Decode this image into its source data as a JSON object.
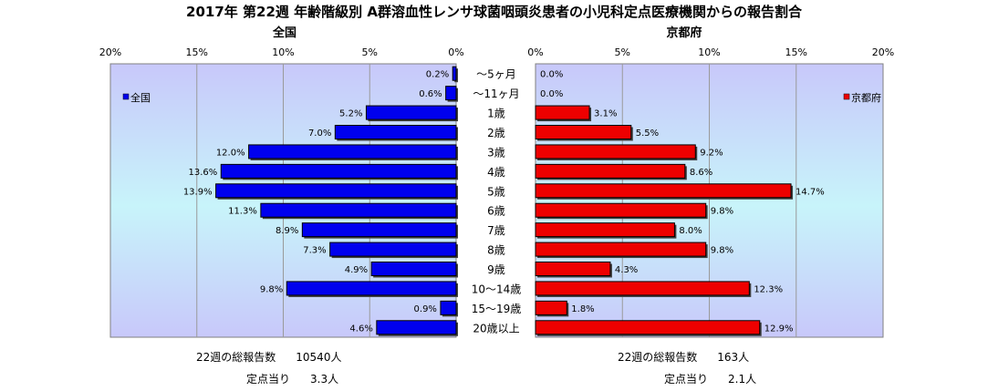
{
  "title": "2017年 第22週 年齢階級別 A群溶血性レンサ球菌咽頭炎患者の小児科定点医療機関からの報告割合",
  "colors": {
    "left_bar": "#0000ee",
    "right_bar": "#ee0000",
    "plot_bg": "#ccccff"
  },
  "chart_data": [
    {
      "type": "bar",
      "orientation": "horizontal",
      "direction": "right-to-left",
      "title": "全国",
      "categories": [
        "～5ヶ月",
        "～11ヶ月",
        "1歳",
        "2歳",
        "3歳",
        "4歳",
        "5歳",
        "6歳",
        "7歳",
        "8歳",
        "9歳",
        "10～14歳",
        "15～19歳",
        "20歳以上"
      ],
      "series": [
        {
          "name": "全国",
          "values": [
            0.2,
            0.6,
            5.2,
            7.0,
            12.0,
            13.6,
            13.9,
            11.3,
            8.9,
            7.3,
            4.9,
            9.8,
            0.9,
            4.6
          ]
        }
      ],
      "value_labels": [
        "0.2%",
        "0.6%",
        "5.2%",
        "7.0%",
        "12.0%",
        "13.6%",
        "13.9%",
        "11.3%",
        "8.9%",
        "7.3%",
        "4.9%",
        "9.8%",
        "0.9%",
        "4.6%"
      ],
      "xlim": [
        0,
        20
      ],
      "ticks": [
        "20%",
        "15%",
        "10%",
        "5%",
        "0%"
      ],
      "grid": true,
      "legend": "top-left"
    },
    {
      "type": "bar",
      "orientation": "horizontal",
      "direction": "left-to-right",
      "title": "京都府",
      "categories": [
        "～5ヶ月",
        "～11ヶ月",
        "1歳",
        "2歳",
        "3歳",
        "4歳",
        "5歳",
        "6歳",
        "7歳",
        "8歳",
        "9歳",
        "10～14歳",
        "15～19歳",
        "20歳以上"
      ],
      "series": [
        {
          "name": "京都府",
          "values": [
            0.0,
            0.0,
            3.1,
            5.5,
            9.2,
            8.6,
            14.7,
            9.8,
            8.0,
            9.8,
            4.3,
            12.3,
            1.8,
            12.9
          ]
        }
      ],
      "value_labels": [
        "0.0%",
        "0.0%",
        "3.1%",
        "5.5%",
        "9.2%",
        "8.6%",
        "14.7%",
        "9.8%",
        "8.0%",
        "9.8%",
        "4.3%",
        "12.3%",
        "1.8%",
        "12.9%"
      ],
      "xlim": [
        0,
        20
      ],
      "ticks": [
        "0%",
        "5%",
        "10%",
        "15%",
        "20%"
      ],
      "grid": true,
      "legend": "top-right"
    }
  ],
  "footer": {
    "left": {
      "total_label": "22週の総報告数",
      "total_value": "10540人",
      "per_label": "定点当り",
      "per_value": "3.3人"
    },
    "right": {
      "total_label": "22週の総報告数",
      "total_value": "163人",
      "per_label": "定点当り",
      "per_value": "2.1人"
    }
  }
}
